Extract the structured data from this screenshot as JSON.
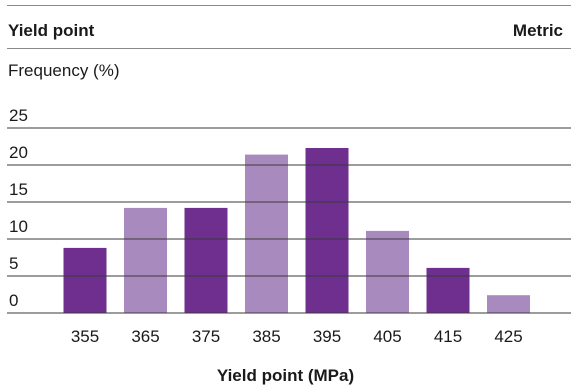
{
  "header": {
    "title": "Yield point",
    "unit_system": "Metric"
  },
  "chart_data": {
    "type": "bar",
    "title": "Yield point",
    "ylabel": "Frequency (%)",
    "xlabel": "Yield point (MPa)",
    "categories": [
      "355",
      "365",
      "375",
      "385",
      "395",
      "405",
      "415",
      "425"
    ],
    "values": [
      8.8,
      14.2,
      14.2,
      21.4,
      22.3,
      11.1,
      6.1,
      2.4
    ],
    "yticks": [
      0,
      5,
      10,
      15,
      20,
      25
    ],
    "ylim": [
      0,
      27
    ],
    "grid": true,
    "colors": [
      "#6f2f8e",
      "#a98abf",
      "#6f2f8e",
      "#a98abf",
      "#6f2f8e",
      "#a98abf",
      "#6f2f8e",
      "#a98abf"
    ]
  }
}
